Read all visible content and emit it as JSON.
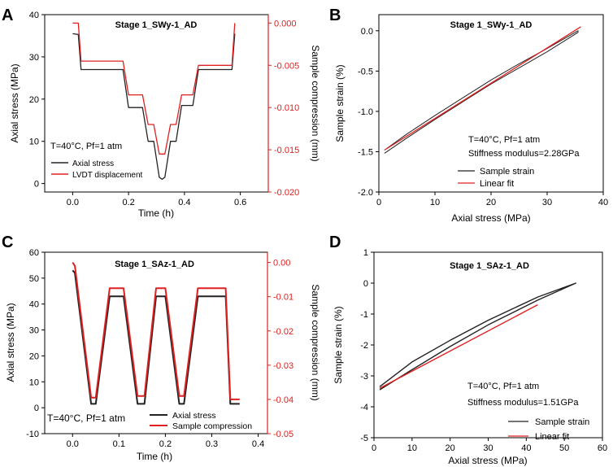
{
  "colors": {
    "black_series": "#222222",
    "red_series": "#e02020",
    "red_axis": "#e02020",
    "axis": "#000000"
  },
  "chart_data": [
    {
      "panel_label": "A",
      "type": "line",
      "title": "Stage 1_SWy-1_AD",
      "xlabel": "Time (h)",
      "ylabel": "Axial stress (MPa)",
      "ylabel_right": "Sample compression (mm)",
      "xlim": [
        -0.1,
        0.7
      ],
      "ylim": [
        -2,
        40
      ],
      "y2lim": [
        -0.02,
        0.001
      ],
      "xticks": [
        0.0,
        0.2,
        0.4,
        0.6
      ],
      "yticks": [
        0,
        10,
        20,
        30,
        40
      ],
      "y2ticks": [
        0.0,
        -0.005,
        -0.01,
        -0.015,
        -0.02
      ],
      "xtick_labels": [
        "0.0",
        "0.2",
        "0.4",
        "0.6"
      ],
      "ytick_labels": [
        "0",
        "10",
        "20",
        "30",
        "40"
      ],
      "y2tick_labels": [
        "0.000",
        "-0.005",
        "-0.010",
        "-0.015",
        "-0.020"
      ],
      "annotation": "T=40°C, Pf=1 atm",
      "legend": [
        "Axial stress",
        "LVDT displacement"
      ],
      "series": [
        {
          "name": "Axial stress",
          "axis": "left",
          "x": [
            0.0,
            0.02,
            0.03,
            0.18,
            0.2,
            0.23,
            0.25,
            0.27,
            0.29,
            0.31,
            0.32,
            0.33,
            0.35,
            0.37,
            0.39,
            0.41,
            0.43,
            0.45,
            0.46,
            0.57,
            0.58
          ],
          "y": [
            35.5,
            35.3,
            27,
            27,
            18,
            18,
            18,
            10,
            10,
            1.5,
            1,
            1.5,
            10,
            10,
            18.5,
            18.5,
            18.5,
            27,
            27,
            27,
            35.5
          ]
        },
        {
          "name": "LVDT displacement",
          "axis": "right",
          "x": [
            0.0,
            0.02,
            0.03,
            0.18,
            0.2,
            0.23,
            0.25,
            0.27,
            0.29,
            0.31,
            0.32,
            0.33,
            0.35,
            0.37,
            0.39,
            0.41,
            0.43,
            0.45,
            0.46,
            0.57,
            0.58
          ],
          "y": [
            0.0,
            0.0,
            -0.0045,
            -0.0045,
            -0.0085,
            -0.0085,
            -0.0085,
            -0.012,
            -0.012,
            -0.0155,
            -0.0155,
            -0.0155,
            -0.012,
            -0.012,
            -0.0085,
            -0.0085,
            -0.0085,
            -0.005,
            -0.005,
            -0.005,
            0.0
          ]
        }
      ]
    },
    {
      "panel_label": "B",
      "type": "line",
      "title": "Stage 1_SWy-1_AD",
      "xlabel": "Axial stress (MPa)",
      "ylabel": "Sample strain (%)",
      "xlim": [
        0,
        40
      ],
      "ylim": [
        -2.0,
        0.2
      ],
      "xticks": [
        0,
        10,
        20,
        30,
        40
      ],
      "yticks": [
        0.0,
        -0.5,
        -1.0,
        -1.5,
        -2.0
      ],
      "xtick_labels": [
        "0",
        "10",
        "20",
        "30",
        "40"
      ],
      "ytick_labels": [
        "0.0",
        "-0.5",
        "-1.0",
        "-1.5",
        "-2.0"
      ],
      "annotation": "T=40°C, Pf=1 atm",
      "annotation2": "Stiffness modulus=2.28GPa",
      "legend": [
        "Sample strain",
        "Linear fit"
      ],
      "series": [
        {
          "name": "Sample strain",
          "x": [
            1,
            5,
            10,
            15,
            20,
            25,
            30,
            35.5,
            35.5,
            30,
            25,
            20,
            15,
            10,
            5,
            1
          ],
          "y": [
            -1.52,
            -1.33,
            -1.1,
            -0.88,
            -0.66,
            -0.46,
            -0.26,
            -0.02,
            0.0,
            -0.22,
            -0.41,
            -0.61,
            -0.83,
            -1.05,
            -1.28,
            -1.48
          ]
        },
        {
          "name": "Linear fit",
          "x": [
            1,
            36
          ],
          "y": [
            -1.48,
            0.05
          ]
        }
      ]
    },
    {
      "panel_label": "C",
      "type": "line",
      "title": "Stage 1_SAz-1_AD",
      "xlabel": "Time (h)",
      "ylabel": "Axial stress (MPa)",
      "ylabel_right": "Sample compression (mm)",
      "xlim": [
        -0.06,
        0.42
      ],
      "ylim": [
        -10,
        60
      ],
      "y2lim": [
        -0.05,
        0.003
      ],
      "xticks": [
        0.0,
        0.1,
        0.2,
        0.3,
        0.4
      ],
      "yticks": [
        -10,
        0,
        10,
        20,
        30,
        40,
        50,
        60
      ],
      "y2ticks": [
        0.0,
        -0.01,
        -0.02,
        -0.03,
        -0.04,
        -0.05
      ],
      "xtick_labels": [
        "0.0",
        "0.1",
        "0.2",
        "0.3",
        "0.4"
      ],
      "ytick_labels": [
        "-10",
        "0",
        "10",
        "20",
        "30",
        "40",
        "50",
        "60"
      ],
      "y2tick_labels": [
        "0.00",
        "-0.01",
        "-0.02",
        "-0.03",
        "-0.04",
        "-0.05"
      ],
      "annotation": "T=40°C, Pf=1 atm",
      "legend": [
        "Axial stress",
        "Sample compression"
      ],
      "series": [
        {
          "name": "Axial stress",
          "axis": "left",
          "x": [
            0.0,
            0.005,
            0.04,
            0.05,
            0.08,
            0.11,
            0.14,
            0.155,
            0.18,
            0.2,
            0.23,
            0.24,
            0.27,
            0.33,
            0.34,
            0.36
          ],
          "y": [
            53,
            52,
            1.5,
            1.5,
            43,
            43,
            1.5,
            1.5,
            43,
            43,
            1.5,
            1.5,
            43,
            43,
            1.5,
            1.5
          ]
        },
        {
          "name": "Sample compression",
          "axis": "right",
          "x": [
            0.0,
            0.005,
            0.04,
            0.05,
            0.08,
            0.11,
            0.14,
            0.155,
            0.18,
            0.2,
            0.23,
            0.24,
            0.27,
            0.33,
            0.34,
            0.36
          ],
          "y": [
            0.0,
            -0.001,
            -0.0395,
            -0.0395,
            -0.0075,
            -0.0075,
            -0.039,
            -0.039,
            -0.0075,
            -0.0075,
            -0.039,
            -0.039,
            -0.0075,
            -0.0075,
            -0.04,
            -0.04
          ]
        }
      ]
    },
    {
      "panel_label": "D",
      "type": "line",
      "title": "Stage 1_SAz-1_AD",
      "xlabel": "Axial stress (MPa)",
      "ylabel": "Sample strain (%)",
      "xlim": [
        0,
        60
      ],
      "ylim": [
        -5,
        1
      ],
      "xticks": [
        0,
        10,
        20,
        30,
        40,
        50,
        60
      ],
      "yticks": [
        1,
        0,
        -1,
        -2,
        -3,
        -4,
        -5
      ],
      "xtick_labels": [
        "0",
        "10",
        "20",
        "30",
        "40",
        "50",
        "60"
      ],
      "ytick_labels": [
        "1",
        "0",
        "-1",
        "-2",
        "-3",
        "-4",
        "-5"
      ],
      "annotation": "T=40°C, Pf=1 atm",
      "annotation2": "Stiffness modulus=1.51GPa",
      "legend": [
        "Sample strain",
        "Linear fit"
      ],
      "series": [
        {
          "name": "Sample strain",
          "x": [
            1.5,
            10,
            20,
            30,
            43,
            53,
            53,
            43,
            30,
            20,
            10,
            1.5
          ],
          "y": [
            -3.45,
            -2.8,
            -2.05,
            -1.35,
            -0.55,
            0.0,
            0.0,
            -0.45,
            -1.2,
            -1.85,
            -2.55,
            -3.35
          ]
        },
        {
          "name": "Linear fit",
          "x": [
            1.5,
            43
          ],
          "y": [
            -3.4,
            -0.7
          ]
        }
      ]
    }
  ]
}
